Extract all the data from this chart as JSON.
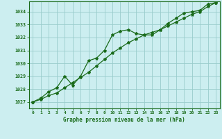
{
  "title": "Graphe pression niveau de la mer (hPa)",
  "background_color": "#cceef0",
  "grid_color": "#99cccc",
  "line_color": "#1a6b1a",
  "x_ticks": [
    0,
    1,
    2,
    3,
    4,
    5,
    6,
    7,
    8,
    9,
    10,
    11,
    12,
    13,
    14,
    15,
    16,
    17,
    18,
    19,
    20,
    21,
    22,
    23
  ],
  "xlim": [
    -0.5,
    23.5
  ],
  "ylim": [
    1026.5,
    1034.8
  ],
  "yticks": [
    1027,
    1028,
    1029,
    1030,
    1031,
    1032,
    1033,
    1034
  ],
  "series1_x": [
    0,
    1,
    2,
    3,
    4,
    5,
    6,
    7,
    8,
    9,
    10,
    11,
    12,
    13,
    14,
    15,
    16,
    17,
    18,
    19,
    20,
    21,
    22,
    23
  ],
  "series1_y": [
    1027.0,
    1027.3,
    1027.8,
    1028.1,
    1029.0,
    1028.3,
    1029.0,
    1030.2,
    1030.4,
    1031.0,
    1032.2,
    1032.5,
    1032.6,
    1032.3,
    1032.2,
    1032.2,
    1032.6,
    1033.1,
    1033.5,
    1033.9,
    1034.0,
    1034.1,
    1034.6,
    1034.7
  ],
  "series2_x": [
    0,
    1,
    2,
    3,
    4,
    5,
    6,
    7,
    8,
    9,
    10,
    11,
    12,
    13,
    14,
    15,
    16,
    17,
    18,
    19,
    20,
    21,
    22,
    23
  ],
  "series2_y": [
    1027.0,
    1027.2,
    1027.5,
    1027.7,
    1028.1,
    1028.5,
    1028.9,
    1029.3,
    1029.8,
    1030.3,
    1030.8,
    1031.2,
    1031.6,
    1031.9,
    1032.2,
    1032.4,
    1032.6,
    1032.9,
    1033.2,
    1033.5,
    1033.8,
    1034.0,
    1034.4,
    1034.7
  ]
}
